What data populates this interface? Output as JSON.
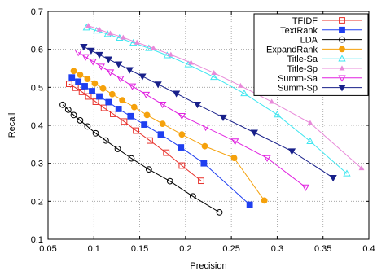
{
  "chart_data": {
    "type": "line",
    "title": "",
    "xlabel": "Precision",
    "ylabel": "Recall",
    "xlim": [
      0.05,
      0.4
    ],
    "ylim": [
      0.1,
      0.7
    ],
    "xticks": [
      "0.05",
      "0.1",
      "0.15",
      "0.2",
      "0.25",
      "0.3",
      "0.35",
      "0.4"
    ],
    "yticks": [
      "0.1",
      "0.2",
      "0.3",
      "0.4",
      "0.5",
      "0.6",
      "0.7"
    ],
    "grid": true,
    "legend_position": "top-right",
    "series": [
      {
        "name": "TFIDF",
        "color": "#e8302a",
        "marker": "open-square",
        "x": [
          0.073,
          0.08,
          0.087,
          0.094,
          0.102,
          0.111,
          0.121,
          0.133,
          0.146,
          0.161,
          0.179,
          0.196,
          0.217
        ],
        "y": [
          0.509,
          0.499,
          0.488,
          0.476,
          0.462,
          0.446,
          0.43,
          0.41,
          0.386,
          0.36,
          0.328,
          0.294,
          0.254
        ]
      },
      {
        "name": "TextRank",
        "color": "#1f3ff0",
        "marker": "filled-square",
        "x": [
          0.076,
          0.083,
          0.09,
          0.098,
          0.106,
          0.116,
          0.127,
          0.14,
          0.155,
          0.173,
          0.195,
          0.22,
          0.27
        ],
        "y": [
          0.526,
          0.515,
          0.503,
          0.49,
          0.476,
          0.461,
          0.443,
          0.424,
          0.402,
          0.376,
          0.342,
          0.3,
          0.191
        ]
      },
      {
        "name": "LDA",
        "color": "#000000",
        "marker": "open-circle",
        "x": [
          0.066,
          0.072,
          0.078,
          0.085,
          0.093,
          0.102,
          0.113,
          0.126,
          0.141,
          0.16,
          0.183,
          0.208,
          0.237
        ],
        "y": [
          0.454,
          0.441,
          0.427,
          0.413,
          0.397,
          0.379,
          0.36,
          0.338,
          0.313,
          0.284,
          0.253,
          0.213,
          0.171
        ]
      },
      {
        "name": "ExpandRank",
        "color": "#f5a10b",
        "marker": "filled-circle",
        "x": [
          0.078,
          0.085,
          0.093,
          0.101,
          0.11,
          0.12,
          0.131,
          0.144,
          0.158,
          0.175,
          0.196,
          0.221,
          0.253,
          0.286
        ],
        "y": [
          0.543,
          0.533,
          0.522,
          0.51,
          0.497,
          0.482,
          0.466,
          0.448,
          0.427,
          0.404,
          0.376,
          0.345,
          0.314,
          0.202
        ]
      },
      {
        "name": "Title-Sa",
        "color": "#3ee6f0",
        "marker": "open-triangle",
        "x": [
          0.092,
          0.103,
          0.115,
          0.128,
          0.143,
          0.16,
          0.18,
          0.203,
          0.231,
          0.264,
          0.3,
          0.336,
          0.376
        ],
        "y": [
          0.657,
          0.649,
          0.64,
          0.63,
          0.617,
          0.603,
          0.584,
          0.56,
          0.527,
          0.484,
          0.428,
          0.358,
          0.273
        ]
      },
      {
        "name": "Title-Sp",
        "color": "#e889d9",
        "marker": "small-triangle",
        "x": [
          0.094,
          0.106,
          0.118,
          0.132,
          0.147,
          0.165,
          0.184,
          0.206,
          0.231,
          0.26,
          0.294,
          0.336,
          0.392
        ],
        "y": [
          0.662,
          0.652,
          0.642,
          0.631,
          0.618,
          0.603,
          0.586,
          0.565,
          0.538,
          0.504,
          0.462,
          0.406,
          0.287
        ]
      },
      {
        "name": "Summ-Sa",
        "color": "#e020e0",
        "marker": "open-down-triangle",
        "x": [
          0.083,
          0.091,
          0.099,
          0.108,
          0.118,
          0.129,
          0.142,
          0.157,
          0.175,
          0.196,
          0.222,
          0.254,
          0.289,
          0.331
        ],
        "y": [
          0.592,
          0.58,
          0.568,
          0.555,
          0.54,
          0.523,
          0.503,
          0.481,
          0.455,
          0.425,
          0.395,
          0.358,
          0.314,
          0.237
        ]
      },
      {
        "name": "Summ-Sp",
        "color": "#18208a",
        "marker": "filled-down-triangle",
        "x": [
          0.089,
          0.097,
          0.106,
          0.116,
          0.127,
          0.139,
          0.153,
          0.17,
          0.19,
          0.213,
          0.241,
          0.275,
          0.316,
          0.361
        ],
        "y": [
          0.607,
          0.597,
          0.586,
          0.574,
          0.561,
          0.546,
          0.529,
          0.508,
          0.484,
          0.455,
          0.421,
          0.381,
          0.332,
          0.262
        ]
      }
    ]
  }
}
